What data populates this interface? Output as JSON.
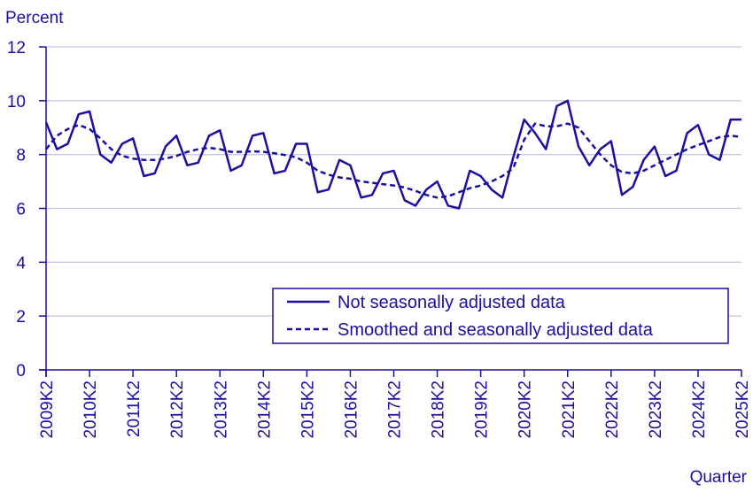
{
  "chart_data": {
    "type": "line",
    "ylabel": "Percent",
    "xlabel": "Quarter",
    "ylim": [
      0,
      12
    ],
    "yticks": [
      0,
      2,
      4,
      6,
      8,
      10,
      12
    ],
    "xticks": [
      "2009K2",
      "2010K2",
      "2011K2",
      "2012K2",
      "2013K2",
      "2014K2",
      "2015K2",
      "2016K2",
      "2017K2",
      "2018K2",
      "2019K2",
      "2020K2",
      "2021K2",
      "2022K2",
      "2023K2",
      "2024K2",
      "2025K2"
    ],
    "grid": "horizontal",
    "legend_position": "bottom-right",
    "colors": {
      "line": "#1a0fa0",
      "grid": "#c8c6e6",
      "axis": "#1a0fa0"
    },
    "x": [
      "2009K2",
      "2009K3",
      "2009K4",
      "2010K1",
      "2010K2",
      "2010K3",
      "2010K4",
      "2011K1",
      "2011K2",
      "2011K3",
      "2011K4",
      "2012K1",
      "2012K2",
      "2012K3",
      "2012K4",
      "2013K1",
      "2013K2",
      "2013K3",
      "2013K4",
      "2014K1",
      "2014K2",
      "2014K3",
      "2014K4",
      "2015K1",
      "2015K2",
      "2015K3",
      "2015K4",
      "2016K1",
      "2016K2",
      "2016K3",
      "2016K4",
      "2017K1",
      "2017K2",
      "2017K3",
      "2017K4",
      "2018K1",
      "2018K2",
      "2018K3",
      "2018K4",
      "2019K1",
      "2019K2",
      "2019K3",
      "2019K4",
      "2020K1",
      "2020K2",
      "2020K3",
      "2020K4",
      "2021K1",
      "2021K2",
      "2021K3",
      "2021K4",
      "2022K1",
      "2022K2",
      "2022K3",
      "2022K4",
      "2023K1",
      "2023K2",
      "2023K3",
      "2023K4",
      "2024K1",
      "2024K2",
      "2024K3",
      "2024K4",
      "2025K1",
      "2025K2"
    ],
    "series": [
      {
        "name": "Not seasonally adjusted data",
        "style": "solid",
        "values": [
          9.2,
          8.2,
          8.4,
          9.5,
          9.6,
          8.0,
          7.7,
          8.4,
          8.6,
          7.2,
          7.3,
          8.3,
          8.7,
          7.6,
          7.7,
          8.7,
          8.9,
          7.4,
          7.6,
          8.7,
          8.8,
          7.3,
          7.4,
          8.4,
          8.4,
          6.6,
          6.7,
          7.8,
          7.6,
          6.4,
          6.5,
          7.3,
          7.4,
          6.3,
          6.1,
          6.7,
          7.0,
          6.1,
          6.0,
          7.4,
          7.2,
          6.7,
          6.4,
          7.9,
          9.3,
          8.8,
          8.2,
          9.8,
          10.0,
          8.3,
          7.6,
          8.2,
          8.5,
          6.5,
          6.8,
          7.8,
          8.3,
          7.2,
          7.4,
          8.8,
          9.1,
          8.0,
          7.8,
          9.3,
          9.3
        ]
      },
      {
        "name": "Smoothed and seasonally adjusted data",
        "style": "dashed",
        "values": [
          8.2,
          8.7,
          8.95,
          9.1,
          8.95,
          8.6,
          8.2,
          7.95,
          7.85,
          7.8,
          7.8,
          7.85,
          7.95,
          8.1,
          8.2,
          8.25,
          8.2,
          8.1,
          8.1,
          8.12,
          8.1,
          8.05,
          7.98,
          7.9,
          7.7,
          7.4,
          7.25,
          7.15,
          7.1,
          7.0,
          6.95,
          6.9,
          6.85,
          6.78,
          6.65,
          6.5,
          6.4,
          6.45,
          6.6,
          6.75,
          6.85,
          7.0,
          7.2,
          7.5,
          8.55,
          9.15,
          9.05,
          9.05,
          9.15,
          9.0,
          8.5,
          8.0,
          7.6,
          7.35,
          7.3,
          7.4,
          7.6,
          7.8,
          8.0,
          8.2,
          8.35,
          8.5,
          8.65,
          8.7,
          8.65
        ]
      }
    ]
  }
}
